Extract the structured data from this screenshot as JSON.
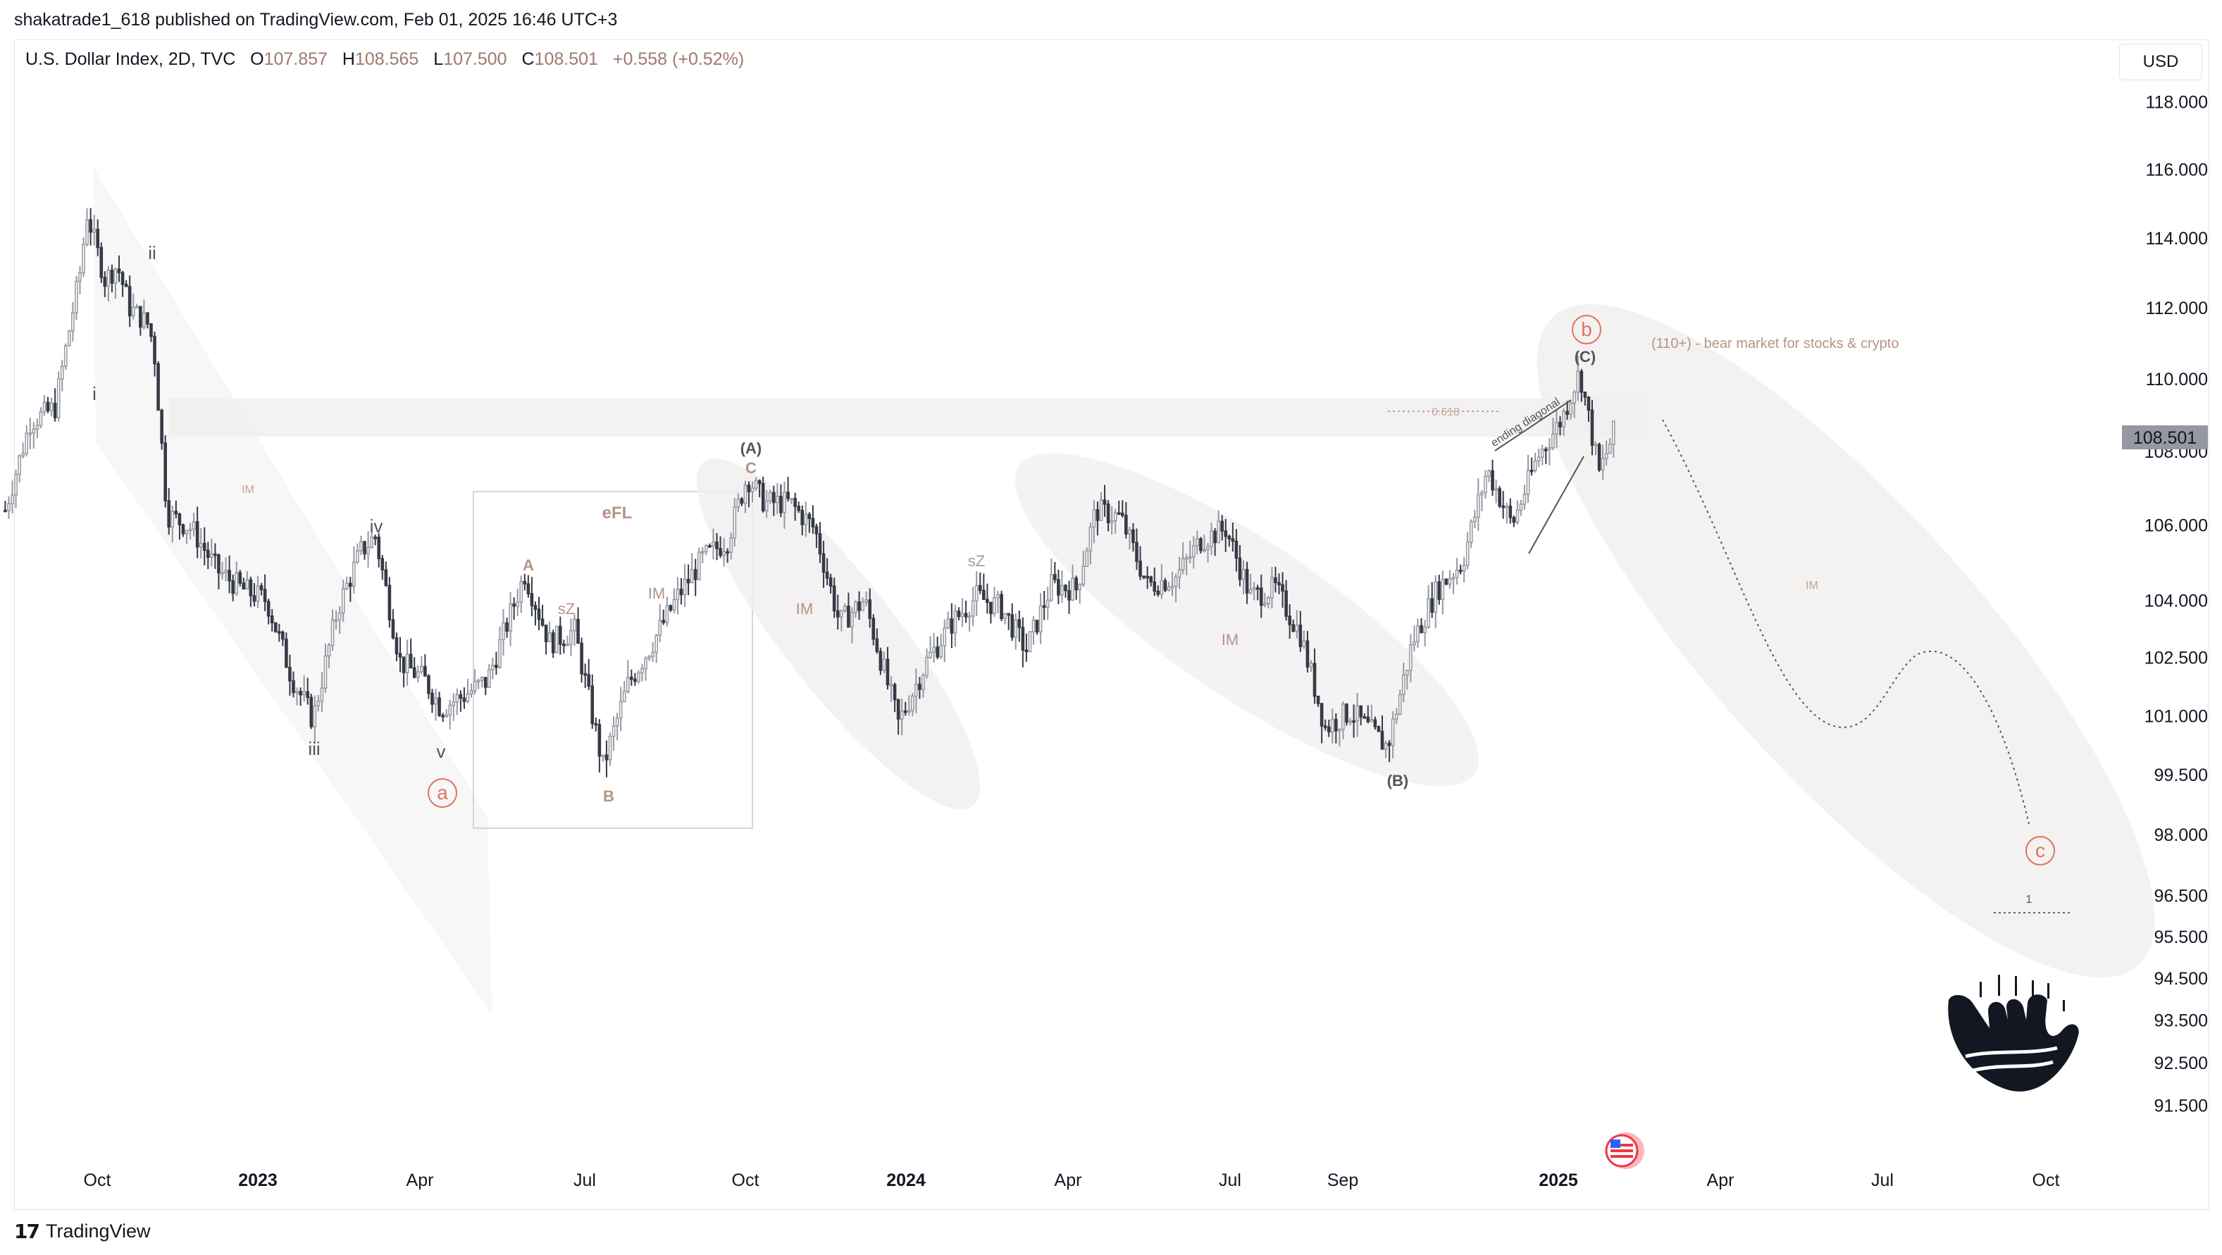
{
  "header": {
    "published": "shakatrade1_618 published on TradingView.com, Feb 01, 2025 16:46 UTC+3"
  },
  "legend": {
    "symbol": "U.S. Dollar Index, 2D, TVC",
    "o_label": "O",
    "o_value": "107.857",
    "h_label": "H",
    "h_value": "108.565",
    "l_label": "L",
    "l_value": "107.500",
    "c_label": "C",
    "c_value": "108.501",
    "change": "+0.558 (+0.52%)"
  },
  "currency": "USD",
  "footer": {
    "brand": "TradingView",
    "logo_icon": "tradingview-logo-icon"
  },
  "colors": {
    "up": "#9598a1",
    "down": "#363a45",
    "annotation": "#b59485",
    "circle_label": "#e0735e",
    "price_tag_bg": "#9598a1"
  },
  "chart_data": {
    "type": "candlestick",
    "y_axis": {
      "ticks": [
        "118.000",
        "116.000",
        "114.000",
        "112.000",
        "110.000",
        "108.000",
        "106.000",
        "104.000",
        "102.500",
        "101.000",
        "99.500",
        "98.000",
        "96.500",
        "95.500",
        "94.500",
        "93.500",
        "92.500",
        "91.500"
      ],
      "current_price": "108.501",
      "scale": "log"
    },
    "x_axis": {
      "ticks": [
        {
          "label": "Oct",
          "bold": false
        },
        {
          "label": "2023",
          "bold": true
        },
        {
          "label": "Apr",
          "bold": false
        },
        {
          "label": "Jul",
          "bold": false
        },
        {
          "label": "Oct",
          "bold": false
        },
        {
          "label": "2024",
          "bold": true
        },
        {
          "label": "Apr",
          "bold": false
        },
        {
          "label": "Jul",
          "bold": false
        },
        {
          "label": "Sep",
          "bold": false
        },
        {
          "label": "2025",
          "bold": true
        },
        {
          "label": "Apr",
          "bold": false
        },
        {
          "label": "Jul",
          "bold": false
        },
        {
          "label": "Oct",
          "bold": false
        }
      ]
    },
    "price_path": [
      [
        "2022-08-12",
        106.4
      ],
      [
        "2022-08-26",
        108.8
      ],
      [
        "2022-09-09",
        109.2
      ],
      [
        "2022-09-23",
        113.0
      ],
      [
        "2022-09-27",
        114.7
      ],
      [
        "2022-10-07",
        112.8
      ],
      [
        "2022-10-14",
        113.2
      ],
      [
        "2022-10-21",
        112.0
      ],
      [
        "2022-11-01",
        111.5
      ],
      [
        "2022-11-04",
        110.6
      ],
      [
        "2022-11-11",
        106.3
      ],
      [
        "2022-11-25",
        105.9
      ],
      [
        "2022-12-09",
        104.8
      ],
      [
        "2022-12-23",
        104.3
      ],
      [
        "2023-01-06",
        104.0
      ],
      [
        "2023-01-20",
        102.0
      ],
      [
        "2023-02-01",
        100.9
      ],
      [
        "2023-02-15",
        103.8
      ],
      [
        "2023-02-28",
        105.3
      ],
      [
        "2023-03-08",
        105.7
      ],
      [
        "2023-03-22",
        102.4
      ],
      [
        "2023-04-05",
        101.9
      ],
      [
        "2023-04-14",
        101.2
      ],
      [
        "2023-04-26",
        101.5
      ],
      [
        "2023-05-10",
        101.9
      ],
      [
        "2023-05-31",
        104.7
      ],
      [
        "2023-06-14",
        102.9
      ],
      [
        "2023-06-28",
        103.2
      ],
      [
        "2023-07-14",
        99.7
      ],
      [
        "2023-07-28",
        101.8
      ],
      [
        "2023-08-11",
        102.9
      ],
      [
        "2023-08-25",
        104.1
      ],
      [
        "2023-09-08",
        105.1
      ],
      [
        "2023-09-22",
        105.6
      ],
      [
        "2023-10-03",
        107.3
      ],
      [
        "2023-10-13",
        106.6
      ],
      [
        "2023-10-27",
        106.6
      ],
      [
        "2023-11-10",
        105.9
      ],
      [
        "2023-11-24",
        103.4
      ],
      [
        "2023-12-08",
        104.0
      ],
      [
        "2023-12-27",
        100.8
      ],
      [
        "2024-01-12",
        102.4
      ],
      [
        "2024-01-26",
        103.4
      ],
      [
        "2024-02-09",
        104.1
      ],
      [
        "2024-02-23",
        103.8
      ],
      [
        "2024-03-08",
        102.7
      ],
      [
        "2024-03-22",
        104.4
      ],
      [
        "2024-04-05",
        104.3
      ],
      [
        "2024-04-16",
        106.4
      ],
      [
        "2024-04-30",
        106.2
      ],
      [
        "2024-05-15",
        104.4
      ],
      [
        "2024-05-31",
        104.6
      ],
      [
        "2024-06-14",
        105.6
      ],
      [
        "2024-06-28",
        105.9
      ],
      [
        "2024-07-12",
        104.1
      ],
      [
        "2024-07-26",
        104.3
      ],
      [
        "2024-08-09",
        103.1
      ],
      [
        "2024-08-23",
        100.7
      ],
      [
        "2024-09-06",
        101.1
      ],
      [
        "2024-09-27",
        100.2
      ],
      [
        "2024-10-11",
        102.9
      ],
      [
        "2024-10-25",
        104.3
      ],
      [
        "2024-11-08",
        105.0
      ],
      [
        "2024-11-22",
        107.5
      ],
      [
        "2024-12-06",
        106.0
      ],
      [
        "2024-12-20",
        107.8
      ],
      [
        "2025-01-03",
        108.9
      ],
      [
        "2025-01-13",
        110.2
      ],
      [
        "2025-01-24",
        107.4
      ],
      [
        "2025-02-01",
        108.501
      ]
    ],
    "annotations": {
      "waves_primary": [
        {
          "label": "i"
        },
        {
          "label": "ii"
        },
        {
          "label": "iii"
        },
        {
          "label": "iv"
        },
        {
          "label": "v"
        }
      ],
      "waves_intermediate": [
        {
          "label": "A"
        },
        {
          "label": "B"
        },
        {
          "label": "C"
        },
        {
          "label": "(A)"
        },
        {
          "label": "(B)"
        },
        {
          "label": "(C)"
        }
      ],
      "circled": [
        {
          "label": "a"
        },
        {
          "label": "b"
        },
        {
          "label": "c"
        }
      ],
      "notes": [
        {
          "label": "IM"
        },
        {
          "label": "eFL"
        },
        {
          "label": "sZ"
        },
        {
          "label": "IM"
        },
        {
          "label": "IM"
        },
        {
          "label": "sZ"
        },
        {
          "label": "IM"
        },
        {
          "label": "IM"
        },
        {
          "label": "0.618"
        },
        {
          "label": "ending diagonal"
        },
        {
          "label": "(110+) - bear market for stocks & crypto"
        },
        {
          "label": "1"
        }
      ]
    }
  }
}
